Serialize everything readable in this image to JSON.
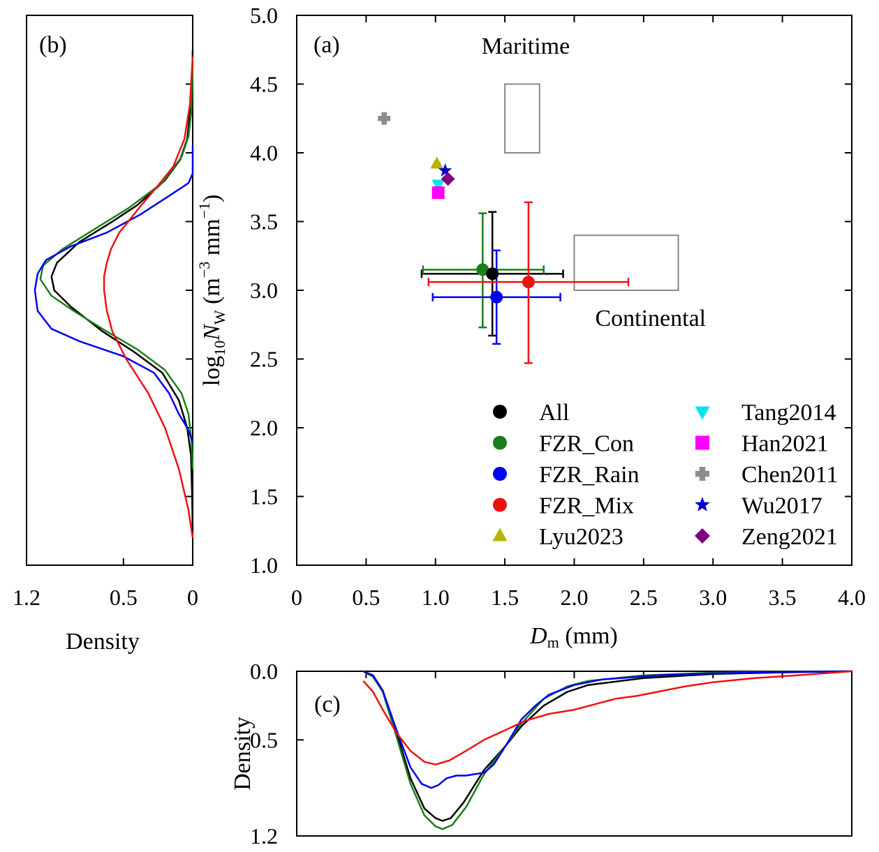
{
  "chart_data": [
    {
      "panel": "(a)",
      "type": "scatter",
      "xlabel_main": "D",
      "xlabel_sub": "m",
      "xlabel_unit": " (mm)",
      "ylabel_pre": "log",
      "ylabel_sub1": "10",
      "ylabel_var": "N",
      "ylabel_sub2": "W",
      "ylabel_unit_open": " (m",
      "ylabel_exp1": "−3",
      "ylabel_unit_mid": " mm",
      "ylabel_exp2": "−1",
      "ylabel_unit_close": ")",
      "xlim": [
        0,
        4.0
      ],
      "ylim": [
        1.0,
        5.0
      ],
      "xticks": [
        "0",
        "0.5",
        "1.0",
        "1.5",
        "2.0",
        "2.5",
        "3.0",
        "3.5",
        "4.0"
      ],
      "yticks": [
        "1.0",
        "1.5",
        "2.0",
        "2.5",
        "3.0",
        "3.5",
        "4.0",
        "4.5",
        "5.0"
      ],
      "annotations": [
        {
          "text": "Maritime",
          "x": 1.65,
          "y": 4.72
        },
        {
          "text": "Continental",
          "x": 2.55,
          "y": 2.74
        }
      ],
      "regions": [
        {
          "name": "Maritime",
          "x0": 1.5,
          "x1": 1.75,
          "y0": 4.0,
          "y1": 4.5
        },
        {
          "name": "Continental",
          "x0": 2.0,
          "x1": 2.75,
          "y0": 3.0,
          "y1": 3.4
        }
      ],
      "series": [
        {
          "name": "All",
          "color": "#000000",
          "marker": "circle",
          "x": 1.41,
          "y": 3.12,
          "xerr": [
            0.9,
            1.92
          ],
          "yerr": [
            2.67,
            3.57
          ]
        },
        {
          "name": "FZR_Con",
          "color": "#1a7f1a",
          "marker": "circle",
          "x": 1.34,
          "y": 3.15,
          "xerr": [
            0.91,
            1.78
          ],
          "yerr": [
            2.73,
            3.56
          ]
        },
        {
          "name": "FZR_Rain",
          "color": "#0000ee",
          "marker": "circle",
          "x": 1.44,
          "y": 2.95,
          "xerr": [
            0.98,
            1.9
          ],
          "yerr": [
            2.61,
            3.29
          ]
        },
        {
          "name": "FZR_Mix",
          "color": "#ee1111",
          "marker": "circle",
          "x": 1.67,
          "y": 3.06,
          "xerr": [
            0.95,
            2.39
          ],
          "yerr": [
            2.47,
            3.64
          ]
        },
        {
          "name": "Lyu2023",
          "color": "#b5b500",
          "marker": "triangle-up",
          "x": 1.01,
          "y": 3.92
        },
        {
          "name": "Tang2014",
          "color": "#00e5ee",
          "marker": "triangle-down",
          "x": 1.02,
          "y": 3.77
        },
        {
          "name": "Han2021",
          "color": "#ff00ff",
          "marker": "square",
          "x": 1.02,
          "y": 3.71
        },
        {
          "name": "Chen2011",
          "color": "#8c8c8c",
          "marker": "cross",
          "x": 0.63,
          "y": 4.25
        },
        {
          "name": "Wu2017",
          "color": "#0000cc",
          "marker": "star",
          "x": 1.07,
          "y": 3.87
        },
        {
          "name": "Zeng2021",
          "color": "#800080",
          "marker": "diamond",
          "x": 1.09,
          "y": 3.81
        }
      ],
      "legend_placement": "bottom-right"
    },
    {
      "panel": "(b)",
      "type": "line",
      "xlabel": "Density",
      "xlim": [
        1.2,
        0
      ],
      "xtick_values": [
        1.2,
        0.5,
        0
      ],
      "xticks": [
        "1.2",
        "0.5",
        "0"
      ],
      "ylim": [
        1.0,
        5.0
      ],
      "series": [
        {
          "name": "All",
          "color": "#000000",
          "points": [
            [
              0.0,
              1.25
            ],
            [
              0.004,
              1.5
            ],
            [
              0.012,
              1.8
            ],
            [
              0.04,
              2.0
            ],
            [
              0.1,
              2.2
            ],
            [
              0.22,
              2.4
            ],
            [
              0.42,
              2.55
            ],
            [
              0.65,
              2.7
            ],
            [
              0.88,
              2.88
            ],
            [
              1.0,
              3.0
            ],
            [
              1.02,
              3.1
            ],
            [
              0.98,
              3.2
            ],
            [
              0.82,
              3.35
            ],
            [
              0.58,
              3.5
            ],
            [
              0.4,
              3.62
            ],
            [
              0.2,
              3.8
            ],
            [
              0.09,
              3.95
            ],
            [
              0.04,
              4.1
            ],
            [
              0.018,
              4.3
            ],
            [
              0.004,
              4.5
            ],
            [
              0.0,
              4.75
            ]
          ]
        },
        {
          "name": "FZR_Con",
          "color": "#1a7f1a",
          "points": [
            [
              0.0,
              1.7
            ],
            [
              0.008,
              1.9
            ],
            [
              0.03,
              2.1
            ],
            [
              0.08,
              2.25
            ],
            [
              0.2,
              2.42
            ],
            [
              0.4,
              2.57
            ],
            [
              0.62,
              2.7
            ],
            [
              0.86,
              2.85
            ],
            [
              1.02,
              2.96
            ],
            [
              1.1,
              3.08
            ],
            [
              1.08,
              3.18
            ],
            [
              0.94,
              3.3
            ],
            [
              0.7,
              3.45
            ],
            [
              0.46,
              3.6
            ],
            [
              0.22,
              3.78
            ],
            [
              0.08,
              3.97
            ],
            [
              0.03,
              4.12
            ],
            [
              0.01,
              4.3
            ],
            [
              0.003,
              4.5
            ],
            [
              0.0,
              4.65
            ]
          ]
        },
        {
          "name": "FZR_Rain",
          "color": "#0000ee",
          "points": [
            [
              0.0,
              1.9
            ],
            [
              0.04,
              2.0
            ],
            [
              0.1,
              2.1
            ],
            [
              0.17,
              2.25
            ],
            [
              0.28,
              2.4
            ],
            [
              0.5,
              2.52
            ],
            [
              0.82,
              2.63
            ],
            [
              1.02,
              2.72
            ],
            [
              1.12,
              2.85
            ],
            [
              1.14,
              3.0
            ],
            [
              1.12,
              3.12
            ],
            [
              1.06,
              3.22
            ],
            [
              0.88,
              3.32
            ],
            [
              0.62,
              3.42
            ],
            [
              0.38,
              3.55
            ],
            [
              0.15,
              3.7
            ],
            [
              0.03,
              3.78
            ],
            [
              0.0,
              3.85
            ],
            [
              0.0,
              4.05
            ]
          ]
        },
        {
          "name": "FZR_Mix",
          "color": "#ee1111",
          "points": [
            [
              0.0,
              1.2
            ],
            [
              0.03,
              1.4
            ],
            [
              0.1,
              1.7
            ],
            [
              0.2,
              2.0
            ],
            [
              0.32,
              2.25
            ],
            [
              0.48,
              2.5
            ],
            [
              0.58,
              2.7
            ],
            [
              0.62,
              2.85
            ],
            [
              0.64,
              3.0
            ],
            [
              0.64,
              3.1
            ],
            [
              0.62,
              3.2
            ],
            [
              0.59,
              3.3
            ],
            [
              0.53,
              3.42
            ],
            [
              0.45,
              3.52
            ],
            [
              0.37,
              3.62
            ],
            [
              0.26,
              3.75
            ],
            [
              0.14,
              3.9
            ],
            [
              0.06,
              4.1
            ],
            [
              0.02,
              4.35
            ],
            [
              0.0,
              4.7
            ]
          ]
        }
      ]
    },
    {
      "panel": "(c)",
      "type": "line",
      "ylabel": "Density",
      "ylim": [
        0,
        1.2
      ],
      "ytick_values": [
        0,
        0.5,
        1.2
      ],
      "yticks": [
        "0.0",
        "0.5",
        "1.2"
      ],
      "xlim": [
        0,
        4.0
      ],
      "series": [
        {
          "name": "All",
          "color": "#000000",
          "points": [
            [
              0.48,
              0.0
            ],
            [
              0.55,
              0.03
            ],
            [
              0.62,
              0.14
            ],
            [
              0.72,
              0.45
            ],
            [
              0.82,
              0.78
            ],
            [
              0.92,
              1.0
            ],
            [
              1.0,
              1.07
            ],
            [
              1.05,
              1.09
            ],
            [
              1.11,
              1.07
            ],
            [
              1.2,
              0.96
            ],
            [
              1.35,
              0.72
            ],
            [
              1.5,
              0.55
            ],
            [
              1.62,
              0.4
            ],
            [
              1.78,
              0.25
            ],
            [
              1.95,
              0.15
            ],
            [
              2.1,
              0.1
            ],
            [
              2.5,
              0.05
            ],
            [
              3.0,
              0.02
            ],
            [
              3.5,
              0.008
            ],
            [
              4.0,
              0.0
            ]
          ]
        },
        {
          "name": "FZR_Con",
          "color": "#1a7f1a",
          "points": [
            [
              0.48,
              0.0
            ],
            [
              0.55,
              0.04
            ],
            [
              0.62,
              0.15
            ],
            [
              0.72,
              0.48
            ],
            [
              0.82,
              0.82
            ],
            [
              0.92,
              1.05
            ],
            [
              1.0,
              1.13
            ],
            [
              1.05,
              1.15
            ],
            [
              1.12,
              1.12
            ],
            [
              1.22,
              0.99
            ],
            [
              1.35,
              0.75
            ],
            [
              1.5,
              0.55
            ],
            [
              1.62,
              0.38
            ],
            [
              1.78,
              0.2
            ],
            [
              1.95,
              0.11
            ],
            [
              2.1,
              0.07
            ],
            [
              2.5,
              0.03
            ],
            [
              3.0,
              0.01
            ],
            [
              3.5,
              0.003
            ],
            [
              4.0,
              0.0
            ]
          ]
        },
        {
          "name": "FZR_Rain",
          "color": "#0000ee",
          "points": [
            [
              0.48,
              0.0
            ],
            [
              0.55,
              0.03
            ],
            [
              0.62,
              0.14
            ],
            [
              0.72,
              0.43
            ],
            [
              0.82,
              0.7
            ],
            [
              0.9,
              0.82
            ],
            [
              0.97,
              0.85
            ],
            [
              1.02,
              0.83
            ],
            [
              1.08,
              0.78
            ],
            [
              1.15,
              0.76
            ],
            [
              1.22,
              0.76
            ],
            [
              1.28,
              0.75
            ],
            [
              1.35,
              0.74
            ],
            [
              1.42,
              0.68
            ],
            [
              1.52,
              0.52
            ],
            [
              1.62,
              0.35
            ],
            [
              1.72,
              0.25
            ],
            [
              1.82,
              0.17
            ],
            [
              2.0,
              0.1
            ],
            [
              2.2,
              0.06
            ],
            [
              2.6,
              0.03
            ],
            [
              3.0,
              0.015
            ],
            [
              3.5,
              0.005
            ],
            [
              4.0,
              0.0
            ]
          ]
        },
        {
          "name": "FZR_Mix",
          "color": "#ee1111",
          "points": [
            [
              0.48,
              0.07
            ],
            [
              0.55,
              0.15
            ],
            [
              0.62,
              0.28
            ],
            [
              0.72,
              0.45
            ],
            [
              0.82,
              0.58
            ],
            [
              0.92,
              0.66
            ],
            [
              1.0,
              0.68
            ],
            [
              1.1,
              0.65
            ],
            [
              1.22,
              0.58
            ],
            [
              1.35,
              0.5
            ],
            [
              1.5,
              0.43
            ],
            [
              1.65,
              0.36
            ],
            [
              1.82,
              0.31
            ],
            [
              2.0,
              0.28
            ],
            [
              2.15,
              0.24
            ],
            [
              2.3,
              0.2
            ],
            [
              2.45,
              0.18
            ],
            [
              2.6,
              0.15
            ],
            [
              2.8,
              0.11
            ],
            [
              3.0,
              0.08
            ],
            [
              3.3,
              0.05
            ],
            [
              3.6,
              0.03
            ],
            [
              4.0,
              0.0
            ]
          ]
        }
      ]
    }
  ]
}
